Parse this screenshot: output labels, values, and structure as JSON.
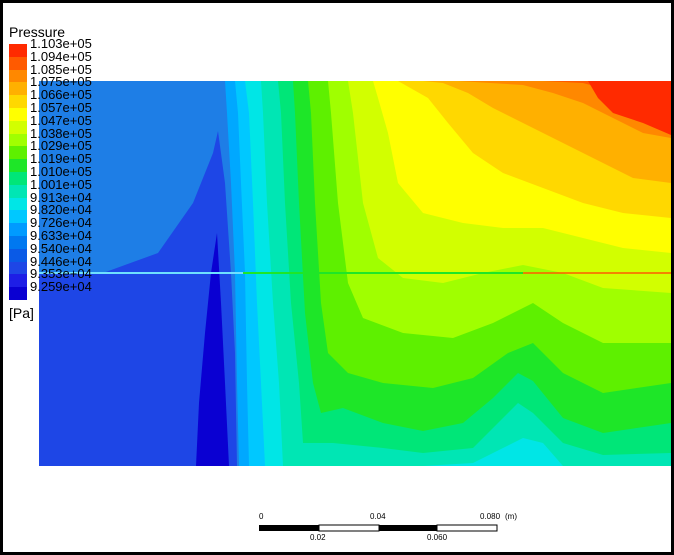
{
  "legend": {
    "title": "Pressure",
    "unit": "[Pa]",
    "labels": [
      "1.103e+05",
      "1.094e+05",
      "1.085e+05",
      "1.075e+05",
      "1.066e+05",
      "1.057e+05",
      "1.047e+05",
      "1.038e+05",
      "1.029e+05",
      "1.019e+05",
      "1.010e+05",
      "1.001e+05",
      "9.913e+04",
      "9.820e+04",
      "9.726e+04",
      "9.633e+04",
      "9.540e+04",
      "9.446e+04",
      "9.353e+04",
      "9.259e+04"
    ],
    "colors": [
      "#ff2a00",
      "#ff5a00",
      "#ff8800",
      "#ffb000",
      "#ffd800",
      "#ffff00",
      "#d2ff00",
      "#a0ff00",
      "#5ef000",
      "#1ee628",
      "#00e678",
      "#00e6b4",
      "#00e6e6",
      "#00c8ff",
      "#009bff",
      "#0078f0",
      "#0a5ae6",
      "#1e46e6",
      "#1e1ee6",
      "#0a00d2"
    ]
  },
  "scale": {
    "unit": "(m)",
    "top_labels": [
      "0",
      "0.04",
      "0.080"
    ],
    "bottom_labels": [
      "0.02",
      "0.060"
    ]
  },
  "contour": {
    "field": "Pressure",
    "colors": {
      "background": "#1e7ee6",
      "dark_core": "#1e46e6",
      "deep_core": "#0a00d2",
      "interface_line": "#6fe0ff"
    }
  }
}
